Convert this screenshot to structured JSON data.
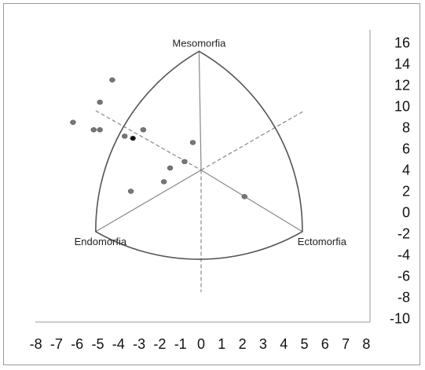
{
  "chart_data": {
    "type": "scatter",
    "title": "",
    "xlabel": "",
    "ylabel": "",
    "xlim": [
      -8,
      8
    ],
    "ylim": [
      -10,
      16
    ],
    "x_ticks": [
      "-8",
      "-7",
      "-6",
      "-5",
      "-4",
      "-3",
      "-2",
      "-1",
      "0",
      "1",
      "2",
      "3",
      "4",
      "5",
      "6",
      "7",
      "8"
    ],
    "y_ticks": [
      "16",
      "14",
      "12",
      "10",
      "8",
      "6",
      "4",
      "2",
      "0",
      "-2",
      "-4",
      "-6",
      "-8",
      "-10"
    ],
    "vertex_labels": {
      "top": "Mesomorfia",
      "left": "Endomorfia",
      "right": "Ectomorfia"
    },
    "points": [
      {
        "x": -4.3,
        "y": 12.5,
        "color": "#777777"
      },
      {
        "x": -4.9,
        "y": 10.4,
        "color": "#777777"
      },
      {
        "x": -6.2,
        "y": 8.5,
        "color": "#777777"
      },
      {
        "x": -5.2,
        "y": 7.8,
        "color": "#777777"
      },
      {
        "x": -4.9,
        "y": 7.8,
        "color": "#777777"
      },
      {
        "x": -2.8,
        "y": 7.8,
        "color": "#777777"
      },
      {
        "x": -3.7,
        "y": 7.2,
        "color": "#777777"
      },
      {
        "x": -3.3,
        "y": 7.0,
        "color": "#111111"
      },
      {
        "x": -0.4,
        "y": 6.6,
        "color": "#777777"
      },
      {
        "x": -0.8,
        "y": 4.8,
        "color": "#777777"
      },
      {
        "x": -1.5,
        "y": 4.2,
        "color": "#777777"
      },
      {
        "x": -1.8,
        "y": 2.9,
        "color": "#777777"
      },
      {
        "x": -3.4,
        "y": 2.0,
        "color": "#777777"
      },
      {
        "x": 2.1,
        "y": 1.5,
        "color": "#777777"
      }
    ]
  }
}
